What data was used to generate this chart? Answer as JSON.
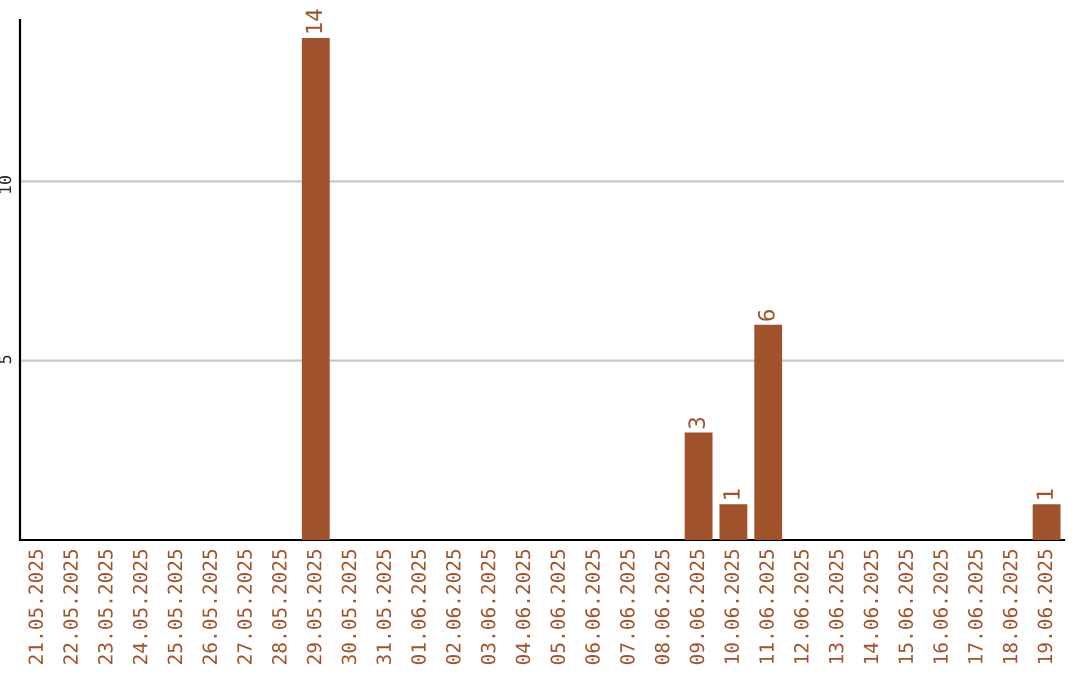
{
  "chart_data": {
    "type": "bar",
    "categories": [
      "21.05.2025",
      "22.05.2025",
      "23.05.2025",
      "24.05.2025",
      "25.05.2025",
      "26.05.2025",
      "27.05.2025",
      "28.05.2025",
      "29.05.2025",
      "30.05.2025",
      "31.05.2025",
      "01.06.2025",
      "02.06.2025",
      "03.06.2025",
      "04.06.2025",
      "05.06.2025",
      "06.06.2025",
      "07.06.2025",
      "08.06.2025",
      "09.06.2025",
      "10.06.2025",
      "11.06.2025",
      "12.06.2025",
      "13.06.2025",
      "14.06.2025",
      "15.06.2025",
      "16.06.2025",
      "17.06.2025",
      "18.06.2025",
      "19.06.2025"
    ],
    "values": [
      0,
      0,
      0,
      0,
      0,
      0,
      0,
      0,
      14,
      0,
      0,
      0,
      0,
      0,
      0,
      0,
      0,
      0,
      0,
      3,
      1,
      6,
      0,
      0,
      0,
      0,
      0,
      0,
      0,
      1
    ],
    "value_labels": [
      null,
      null,
      null,
      null,
      null,
      null,
      null,
      null,
      "14",
      null,
      null,
      null,
      null,
      null,
      null,
      null,
      null,
      null,
      null,
      "3",
      "1",
      "6",
      null,
      null,
      null,
      null,
      null,
      null,
      null,
      "1"
    ],
    "color": "#a0522d",
    "ylim": [
      0,
      14.5
    ],
    "yticks": [
      5,
      10
    ],
    "grid": "y",
    "legend": false
  }
}
